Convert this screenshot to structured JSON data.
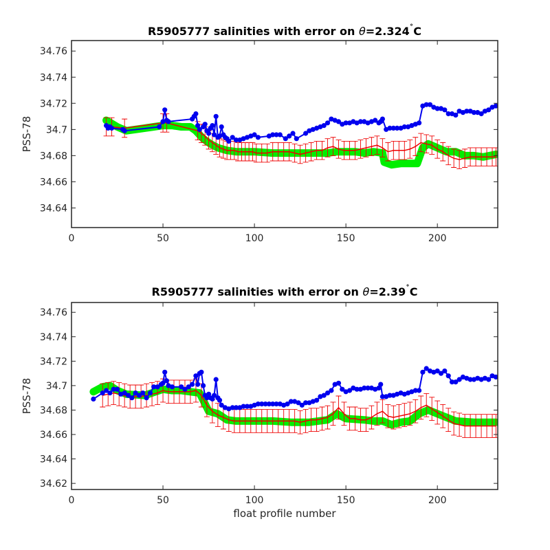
{
  "chart_data": [
    {
      "type": "scatter",
      "title": "R5905777 salinities with error on θ=2.324˚C",
      "title_parts": {
        "prefix": "R5905777 salinities with error on ",
        "theta": "θ",
        "suffix": "=2.324",
        "degree": "˚",
        "unit": "C"
      },
      "xlabel": "",
      "ylabel": "PSS-78",
      "xlim": [
        0,
        233
      ],
      "ylim": [
        34.625,
        34.768
      ],
      "xticks": [
        0,
        50,
        100,
        150,
        200
      ],
      "yticks": [
        34.64,
        34.66,
        34.68,
        34.7,
        34.72,
        34.74,
        34.76
      ],
      "ytick_labels": [
        "34.64",
        "34.66",
        "34.68",
        "34.7",
        "34.72",
        "34.74",
        "34.76"
      ],
      "series": [
        {
          "role": "float_salinity",
          "color": "#0000ee",
          "x": [
            19,
            20,
            21,
            22,
            28,
            29,
            48,
            50,
            51,
            52,
            53,
            66,
            67,
            68,
            69,
            70,
            72,
            73,
            74,
            75,
            76,
            77,
            78,
            79,
            80,
            81,
            82,
            83,
            84,
            85,
            86,
            88,
            90,
            92,
            94,
            96,
            98,
            100,
            102,
            108,
            110,
            112,
            114,
            117,
            119,
            121,
            123,
            128,
            130,
            132,
            134,
            136,
            138,
            140,
            142,
            144,
            146,
            148,
            150,
            152,
            154,
            156,
            158,
            160,
            162,
            164,
            166,
            168,
            169,
            170,
            172,
            174,
            176,
            178,
            180,
            182,
            184,
            186,
            188,
            190,
            192,
            194,
            196,
            198,
            200,
            202,
            204,
            206,
            208,
            210,
            212,
            214,
            216,
            218,
            220,
            222,
            224,
            226,
            228,
            230,
            232
          ],
          "y": [
            34.703,
            34.701,
            34.702,
            34.701,
            34.7,
            34.699,
            34.702,
            34.706,
            34.715,
            34.707,
            34.706,
            34.708,
            34.71,
            34.712,
            34.703,
            34.7,
            34.702,
            34.704,
            34.699,
            34.697,
            34.701,
            34.703,
            34.696,
            34.71,
            34.694,
            34.695,
            34.702,
            34.696,
            34.694,
            34.693,
            34.691,
            34.694,
            34.692,
            34.692,
            34.693,
            34.694,
            34.695,
            34.696,
            34.694,
            34.695,
            34.696,
            34.696,
            34.696,
            34.693,
            34.695,
            34.697,
            34.693,
            34.697,
            34.699,
            34.7,
            34.701,
            34.702,
            34.703,
            34.705,
            34.708,
            34.707,
            34.706,
            34.704,
            34.705,
            34.705,
            34.706,
            34.705,
            34.706,
            34.706,
            34.705,
            34.706,
            34.707,
            34.705,
            34.706,
            34.708,
            34.7,
            34.701,
            34.701,
            34.701,
            34.701,
            34.702,
            34.702,
            34.703,
            34.704,
            34.705,
            34.718,
            34.719,
            34.719,
            34.717,
            34.716,
            34.716,
            34.715,
            34.712,
            34.712,
            34.711,
            34.714,
            34.713,
            34.714,
            34.714,
            34.713,
            34.713,
            34.712,
            34.714,
            34.715,
            34.717,
            34.718
          ]
        },
        {
          "role": "climatology_band",
          "color": "#00ee00",
          "x": [
            19,
            25,
            30,
            35,
            40,
            45,
            50,
            55,
            60,
            65,
            68,
            72,
            76,
            80,
            85,
            90,
            100,
            110,
            120,
            125,
            130,
            140,
            145,
            150,
            155,
            160,
            165,
            170,
            171,
            175,
            180,
            185,
            189,
            192,
            195,
            200,
            205,
            210,
            215,
            220,
            225,
            232
          ],
          "y": [
            34.707,
            34.702,
            34.699,
            34.7,
            34.701,
            34.702,
            34.703,
            34.703,
            34.702,
            34.702,
            34.699,
            34.693,
            34.689,
            34.686,
            34.684,
            34.683,
            34.683,
            34.682,
            34.682,
            34.682,
            34.682,
            34.682,
            34.683,
            34.683,
            34.683,
            34.682,
            34.683,
            34.682,
            34.675,
            34.673,
            34.674,
            34.674,
            34.674,
            34.686,
            34.689,
            34.686,
            34.683,
            34.683,
            34.68,
            34.68,
            34.679,
            34.681
          ]
        },
        {
          "role": "mapped_salinity_with_error",
          "color": "#ee0000",
          "x": [
            19,
            22,
            29,
            50,
            52,
            69,
            71,
            73,
            75,
            77,
            79,
            81,
            83,
            85,
            87,
            89,
            91,
            93,
            95,
            97,
            99,
            101,
            104,
            107,
            110,
            113,
            116,
            119,
            122,
            125,
            128,
            131,
            134,
            137,
            140,
            143,
            146,
            149,
            152,
            155,
            158,
            161,
            164,
            167,
            170,
            173,
            176,
            179,
            182,
            185,
            188,
            191,
            194,
            197,
            200,
            203,
            206,
            209,
            212,
            215,
            218,
            221,
            224,
            227,
            230,
            232
          ],
          "y": [
            34.702,
            34.702,
            34.701,
            34.705,
            34.705,
            34.699,
            34.697,
            34.695,
            34.692,
            34.69,
            34.688,
            34.686,
            34.685,
            34.684,
            34.684,
            34.684,
            34.683,
            34.683,
            34.683,
            34.683,
            34.683,
            34.682,
            34.682,
            34.682,
            34.683,
            34.683,
            34.683,
            34.683,
            34.682,
            34.681,
            34.682,
            34.683,
            34.684,
            34.684,
            34.686,
            34.687,
            34.685,
            34.684,
            34.684,
            34.684,
            34.685,
            34.686,
            34.687,
            34.688,
            34.686,
            34.683,
            34.684,
            34.684,
            34.684,
            34.685,
            34.687,
            34.69,
            34.689,
            34.688,
            34.685,
            34.683,
            34.68,
            34.678,
            34.677,
            34.678,
            34.679,
            34.679,
            34.679,
            34.679,
            34.679,
            34.679
          ],
          "err": 0.007
        }
      ]
    },
    {
      "type": "scatter",
      "title": "R5905777 salinities with error on θ=2.39˚C",
      "title_parts": {
        "prefix": "R5905777 salinities with error on ",
        "theta": "θ",
        "suffix": "=2.39",
        "degree": "˚",
        "unit": "C"
      },
      "xlabel": "float profile number",
      "ylabel": "PSS-78",
      "xlim": [
        0,
        233
      ],
      "ylim": [
        34.615,
        34.768
      ],
      "xticks": [
        0,
        50,
        100,
        150,
        200
      ],
      "yticks": [
        34.62,
        34.64,
        34.66,
        34.68,
        34.7,
        34.72,
        34.74,
        34.76
      ],
      "ytick_labels": [
        "34.62",
        "34.64",
        "34.66",
        "34.68",
        "34.7",
        "34.72",
        "34.74",
        "34.76"
      ],
      "series": [
        {
          "role": "float_salinity",
          "color": "#0000ee",
          "x": [
            12,
            17,
            19,
            21,
            23,
            25,
            27,
            29,
            31,
            33,
            35,
            37,
            39,
            41,
            43,
            45,
            47,
            49,
            50,
            51,
            52,
            53,
            55,
            60,
            62,
            64,
            66,
            68,
            69,
            70,
            71,
            72,
            73,
            74,
            75,
            76,
            77,
            78,
            79,
            80,
            81,
            82,
            84,
            86,
            88,
            90,
            92,
            94,
            96,
            98,
            100,
            102,
            104,
            106,
            108,
            110,
            112,
            114,
            116,
            118,
            120,
            122,
            124,
            126,
            128,
            130,
            132,
            134,
            136,
            138,
            140,
            142,
            144,
            146,
            148,
            150,
            152,
            154,
            156,
            158,
            160,
            162,
            164,
            166,
            168,
            169,
            170,
            172,
            174,
            176,
            178,
            180,
            182,
            184,
            186,
            188,
            190,
            192,
            194,
            196,
            198,
            200,
            202,
            204,
            206,
            208,
            210,
            212,
            214,
            216,
            218,
            220,
            222,
            224,
            226,
            228,
            230,
            232
          ],
          "y": [
            34.689,
            34.694,
            34.696,
            34.694,
            34.697,
            34.697,
            34.693,
            34.694,
            34.692,
            34.69,
            34.694,
            34.692,
            34.694,
            34.69,
            34.694,
            34.699,
            34.699,
            34.701,
            34.702,
            34.711,
            34.704,
            34.7,
            34.699,
            34.699,
            34.697,
            34.699,
            34.701,
            34.708,
            34.701,
            34.71,
            34.711,
            34.7,
            34.692,
            34.69,
            34.693,
            34.69,
            34.689,
            34.692,
            34.705,
            34.69,
            34.688,
            34.684,
            34.682,
            34.681,
            34.682,
            34.682,
            34.682,
            34.683,
            34.683,
            34.683,
            34.684,
            34.685,
            34.685,
            34.685,
            34.685,
            34.685,
            34.685,
            34.685,
            34.684,
            34.685,
            34.687,
            34.687,
            34.686,
            34.684,
            34.686,
            34.686,
            34.687,
            34.688,
            34.691,
            34.692,
            34.694,
            34.696,
            34.701,
            34.702,
            34.697,
            34.695,
            34.696,
            34.698,
            34.697,
            34.697,
            34.698,
            34.698,
            34.698,
            34.697,
            34.698,
            34.701,
            34.691,
            34.691,
            34.692,
            34.692,
            34.693,
            34.694,
            34.693,
            34.694,
            34.695,
            34.696,
            34.696,
            34.711,
            34.714,
            34.712,
            34.711,
            34.712,
            34.71,
            34.712,
            34.708,
            34.703,
            34.703,
            34.705,
            34.707,
            34.706,
            34.705,
            34.705,
            34.706,
            34.705,
            34.706,
            34.705,
            34.708,
            34.707
          ]
        },
        {
          "role": "climatology_band",
          "color": "#00ee00",
          "x": [
            12,
            17,
            21,
            25,
            30,
            40,
            50,
            55,
            60,
            65,
            70,
            75,
            80,
            85,
            90,
            100,
            110,
            120,
            130,
            140,
            145,
            150,
            160,
            165,
            170,
            175,
            180,
            185,
            190,
            195,
            200,
            205,
            210,
            220,
            232
          ],
          "y": [
            34.695,
            34.699,
            34.7,
            34.696,
            34.693,
            34.692,
            34.697,
            34.696,
            34.696,
            34.695,
            34.694,
            34.679,
            34.677,
            34.672,
            34.671,
            34.671,
            34.671,
            34.67,
            34.67,
            34.672,
            34.677,
            34.673,
            34.672,
            34.671,
            34.671,
            34.668,
            34.67,
            34.671,
            34.677,
            34.68,
            34.677,
            34.674,
            34.671,
            34.67,
            34.67
          ]
        },
        {
          "role": "mapped_salinity_with_error",
          "color": "#ee0000",
          "x": [
            17,
            20,
            23,
            26,
            29,
            32,
            35,
            38,
            41,
            44,
            47,
            50,
            53,
            56,
            59,
            62,
            65,
            68,
            71,
            74,
            77,
            80,
            83,
            86,
            89,
            92,
            95,
            98,
            101,
            104,
            107,
            110,
            113,
            116,
            119,
            122,
            125,
            128,
            131,
            134,
            137,
            140,
            143,
            146,
            149,
            152,
            155,
            158,
            161,
            164,
            167,
            170,
            173,
            176,
            179,
            182,
            185,
            188,
            191,
            194,
            197,
            200,
            203,
            206,
            209,
            212,
            215,
            218,
            221,
            224,
            227,
            230,
            232
          ],
          "y": [
            34.692,
            34.693,
            34.694,
            34.693,
            34.692,
            34.691,
            34.691,
            34.691,
            34.692,
            34.693,
            34.694,
            34.696,
            34.695,
            34.695,
            34.695,
            34.695,
            34.695,
            34.696,
            34.692,
            34.684,
            34.679,
            34.676,
            34.674,
            34.672,
            34.671,
            34.671,
            34.671,
            34.671,
            34.671,
            34.671,
            34.671,
            34.671,
            34.671,
            34.671,
            34.671,
            34.671,
            34.67,
            34.671,
            34.672,
            34.672,
            34.673,
            34.674,
            34.677,
            34.682,
            34.677,
            34.673,
            34.673,
            34.672,
            34.672,
            34.674,
            34.677,
            34.679,
            34.675,
            34.674,
            34.675,
            34.676,
            34.677,
            34.679,
            34.682,
            34.684,
            34.681,
            34.678,
            34.675,
            34.672,
            34.669,
            34.668,
            34.667,
            34.667,
            34.667,
            34.667,
            34.667,
            34.667,
            34.667
          ],
          "err": 0.0095
        }
      ]
    }
  ]
}
